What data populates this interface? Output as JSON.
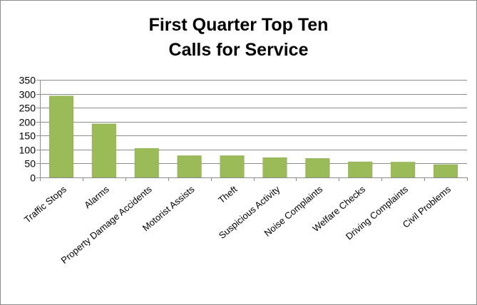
{
  "chart_data": {
    "type": "bar",
    "title_line1": "First Quarter Top Ten",
    "title_line2": "Calls for Service",
    "xlabel": "",
    "ylabel": "",
    "ylim": [
      0,
      350
    ],
    "yticks": [
      0,
      50,
      100,
      150,
      200,
      250,
      300,
      350
    ],
    "ytick_labels": [
      "0",
      "50",
      "100",
      "150",
      "200",
      "250",
      "300",
      "350"
    ],
    "grid": true,
    "legend": "none",
    "bar_color": "#9bbb59",
    "bar_edge_color": "#8aa84f",
    "categories": [
      "Traffic Stops",
      "Alarms",
      "Property Damage Accidents",
      "Motorist Assists",
      "Theft",
      "Suspicious Activity",
      "Noise Complaints",
      "Welfare Checks",
      "Driving Complaints",
      "Civil Problems"
    ],
    "values": [
      292,
      192,
      104,
      78,
      78,
      71,
      68,
      56,
      55,
      46
    ]
  }
}
